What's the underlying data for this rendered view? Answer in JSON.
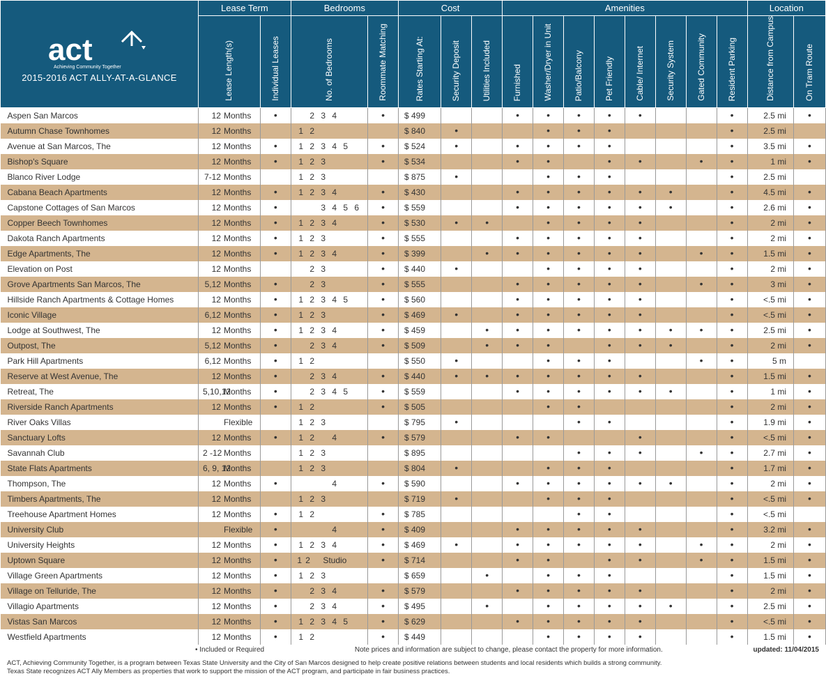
{
  "header": {
    "logo_label": "act",
    "logo_tagline": "Achieving Community Together",
    "title": "2015-2016 ACT ALLY-AT-A-GLANCE"
  },
  "groups": {
    "lease_term": "Lease Term",
    "bedrooms": "Bedrooms",
    "cost": "Cost",
    "amenities": "Amenities",
    "location": "Location"
  },
  "columns": {
    "lease_length": "Lease\nLength(s)",
    "individual_leases": "Individual\nLeases",
    "no_bedrooms": "No. of\nBedrooms",
    "roommate_matching": "Roommate\nMatching",
    "rates": "Rates\nStarting At:",
    "security_deposit": "Security\nDeposit",
    "utilities": "Utilities\nIncluded",
    "furnished": "Furnished",
    "washer_dryer": "Washer/Dryer\nin Unit",
    "patio_balcony": "Patio/Balcony",
    "pet_friendly": "Pet Friendly",
    "cable_internet": "Cable/ Internet",
    "security_system": "Security System",
    "gated": "Gated\nCommunity",
    "resident_parking": "Resident\nParking",
    "distance": "Distance from\nCampus",
    "tram": "On\nTram Route"
  },
  "footer": {
    "legend": "Included or Required",
    "note": "Note prices and information are subject to change, please contact the property for more information.",
    "updated": "updated: 11/04/2015",
    "disclaimer1": "ACT, Achieving Community Together, is a program between Texas State University and the City of San Marcos designed to help create positive relations between students and local residents which builds a strong community.",
    "disclaimer2": "Texas State recognizes ACT Ally Members as properties that work to support the mission of the ACT program, and participate in fair business practices."
  },
  "bedroom_slots": [
    "1",
    "2",
    "3",
    "4",
    "5",
    "6"
  ],
  "properties": [
    {
      "name": "Aspen San Marcos",
      "lease_num": "12",
      "lease_unit": "Months",
      "ind": "•",
      "beds": [
        "",
        "2",
        "3",
        "4",
        "",
        ""
      ],
      "room": "•",
      "rate": "$ 499",
      "sec": "",
      "util": "",
      "fur": "•",
      "wd": "•",
      "patio": "•",
      "pet": "•",
      "cable": "•",
      "ss": "",
      "gated": "",
      "park": "•",
      "dist": "2.5 mi",
      "tram": "•"
    },
    {
      "name": "Autumn Chase Townhomes",
      "lease_num": "12",
      "lease_unit": "Months",
      "ind": "",
      "beds": [
        "1",
        "2",
        "",
        "",
        "",
        ""
      ],
      "room": "",
      "rate": "$ 840",
      "sec": "•",
      "util": "",
      "fur": "",
      "wd": "•",
      "patio": "•",
      "pet": "•",
      "cable": "",
      "ss": "",
      "gated": "",
      "park": "•",
      "dist": "2.5 mi",
      "tram": ""
    },
    {
      "name": "Avenue at San Marcos, The",
      "lease_num": "12",
      "lease_unit": "Months",
      "ind": "•",
      "beds": [
        "1",
        "2",
        "3",
        "4",
        "5",
        ""
      ],
      "room": "•",
      "rate": "$ 524",
      "sec": "•",
      "util": "",
      "fur": "•",
      "wd": "•",
      "patio": "•",
      "pet": "•",
      "cable": "",
      "ss": "",
      "gated": "",
      "park": "•",
      "dist": "3.5 mi",
      "tram": "•"
    },
    {
      "name": "Bishop's Square",
      "lease_num": "12",
      "lease_unit": "Months",
      "ind": "•",
      "beds": [
        "1",
        "2",
        "3",
        "",
        "",
        ""
      ],
      "room": "•",
      "rate": "$ 534",
      "sec": "",
      "util": "",
      "fur": "•",
      "wd": "•",
      "patio": "",
      "pet": "•",
      "cable": "•",
      "ss": "",
      "gated": "•",
      "park": "•",
      "dist": "1 mi",
      "tram": "•"
    },
    {
      "name": "Blanco River Lodge",
      "lease_num": "7-12",
      "lease_unit": "Months",
      "ind": "",
      "beds": [
        "1",
        "2",
        "3",
        "",
        "",
        ""
      ],
      "room": "",
      "rate": "$ 875",
      "sec": "•",
      "util": "",
      "fur": "",
      "wd": "•",
      "patio": "•",
      "pet": "•",
      "cable": "",
      "ss": "",
      "gated": "",
      "park": "•",
      "dist": "2.5 mi",
      "tram": ""
    },
    {
      "name": "Cabana Beach Apartments",
      "lease_num": "12",
      "lease_unit": "Months",
      "ind": "•",
      "beds": [
        "1",
        "2",
        "3",
        "4",
        "",
        ""
      ],
      "room": "•",
      "rate": "$ 430",
      "sec": "",
      "util": "",
      "fur": "•",
      "wd": "•",
      "patio": "•",
      "pet": "•",
      "cable": "•",
      "ss": "•",
      "gated": "",
      "park": "•",
      "dist": "4.5 mi",
      "tram": "•"
    },
    {
      "name": "Capstone Cottages of San Marcos",
      "lease_num": "12",
      "lease_unit": "Months",
      "ind": "•",
      "beds": [
        "",
        "",
        "3",
        "4",
        "5",
        "6"
      ],
      "room": "•",
      "rate": "$ 559",
      "sec": "",
      "util": "",
      "fur": "•",
      "wd": "•",
      "patio": "•",
      "pet": "•",
      "cable": "•",
      "ss": "•",
      "gated": "",
      "park": "•",
      "dist": "2.6 mi",
      "tram": "•"
    },
    {
      "name": "Copper Beech Townhomes",
      "lease_num": "12",
      "lease_unit": "Months",
      "ind": "•",
      "beds": [
        "1",
        "2",
        "3",
        "4",
        "",
        ""
      ],
      "room": "•",
      "rate": "$ 530",
      "sec": "•",
      "util": "•",
      "fur": "",
      "wd": "•",
      "patio": "•",
      "pet": "•",
      "cable": "•",
      "ss": "",
      "gated": "",
      "park": "•",
      "dist": "2 mi",
      "tram": "•"
    },
    {
      "name": "Dakota Ranch Apartments",
      "lease_num": "12",
      "lease_unit": "Months",
      "ind": "•",
      "beds": [
        "1",
        "2",
        "3",
        "",
        "",
        ""
      ],
      "room": "•",
      "rate": "$ 555",
      "sec": "",
      "util": "",
      "fur": "•",
      "wd": "•",
      "patio": "•",
      "pet": "•",
      "cable": "•",
      "ss": "",
      "gated": "",
      "park": "•",
      "dist": "2 mi",
      "tram": "•"
    },
    {
      "name": "Edge Apartments, The",
      "lease_num": "12",
      "lease_unit": "Months",
      "ind": "•",
      "beds": [
        "1",
        "2",
        "3",
        "4",
        "",
        ""
      ],
      "room": "•",
      "rate": "$ 399",
      "sec": "",
      "util": "•",
      "fur": "•",
      "wd": "•",
      "patio": "•",
      "pet": "•",
      "cable": "•",
      "ss": "",
      "gated": "•",
      "park": "•",
      "dist": "1.5 mi",
      "tram": "•"
    },
    {
      "name": "Elevation on Post",
      "lease_num": "12",
      "lease_unit": "Months",
      "ind": "",
      "beds": [
        "",
        "2",
        "3",
        "",
        "",
        ""
      ],
      "room": "•",
      "rate": "$ 440",
      "sec": "•",
      "util": "",
      "fur": "",
      "wd": "•",
      "patio": "•",
      "pet": "•",
      "cable": "•",
      "ss": "",
      "gated": "",
      "park": "•",
      "dist": "2 mi",
      "tram": "•"
    },
    {
      "name": "Grove Apartments San Marcos, The",
      "lease_num": "5,12",
      "lease_unit": "Months",
      "ind": "•",
      "beds": [
        "",
        "2",
        "3",
        "",
        "",
        ""
      ],
      "room": "•",
      "rate": "$ 555",
      "sec": "",
      "util": "",
      "fur": "•",
      "wd": "•",
      "patio": "•",
      "pet": "•",
      "cable": "•",
      "ss": "",
      "gated": "•",
      "park": "•",
      "dist": "3 mi",
      "tram": "•"
    },
    {
      "name": "Hillside Ranch Apartments & Cottage Homes",
      "lease_num": "12",
      "lease_unit": "Months",
      "ind": "•",
      "beds": [
        "1",
        "2",
        "3",
        "4",
        "5",
        ""
      ],
      "room": "•",
      "rate": "$ 560",
      "sec": "",
      "util": "",
      "fur": "•",
      "wd": "•",
      "patio": "•",
      "pet": "•",
      "cable": "•",
      "ss": "",
      "gated": "",
      "park": "•",
      "dist": "<.5 mi",
      "tram": "•"
    },
    {
      "name": "Iconic Village",
      "lease_num": "6,12",
      "lease_unit": "Months",
      "ind": "•",
      "beds": [
        "1",
        "2",
        "3",
        "",
        "",
        ""
      ],
      "room": "•",
      "rate": "$ 469",
      "sec": "•",
      "util": "",
      "fur": "•",
      "wd": "•",
      "patio": "•",
      "pet": "•",
      "cable": "•",
      "ss": "",
      "gated": "",
      "park": "•",
      "dist": "<.5 mi",
      "tram": "•"
    },
    {
      "name": "Lodge at Southwest, The",
      "lease_num": "12",
      "lease_unit": "Months",
      "ind": "•",
      "beds": [
        "1",
        "2",
        "3",
        "4",
        "",
        ""
      ],
      "room": "•",
      "rate": "$ 459",
      "sec": "",
      "util": "•",
      "fur": "•",
      "wd": "•",
      "patio": "•",
      "pet": "•",
      "cable": "•",
      "ss": "•",
      "gated": "•",
      "park": "•",
      "dist": "2.5 mi",
      "tram": "•"
    },
    {
      "name": "Outpost, The",
      "lease_num": "5,12",
      "lease_unit": "Months",
      "ind": "•",
      "beds": [
        "",
        "2",
        "3",
        "4",
        "",
        ""
      ],
      "room": "•",
      "rate": "$ 509",
      "sec": "",
      "util": "•",
      "fur": "•",
      "wd": "•",
      "patio": "",
      "pet": "•",
      "cable": "•",
      "ss": "•",
      "gated": "",
      "park": "•",
      "dist": "2 mi",
      "tram": "•"
    },
    {
      "name": "Park Hill Apartments",
      "lease_num": "6,12",
      "lease_unit": "Months",
      "ind": "•",
      "beds": [
        "1",
        "2",
        "",
        "",
        "",
        ""
      ],
      "room": "",
      "rate": "$ 550",
      "sec": "•",
      "util": "",
      "fur": "",
      "wd": "•",
      "patio": "•",
      "pet": "•",
      "cable": "",
      "ss": "",
      "gated": "•",
      "park": "•",
      "dist": "5 m",
      "tram": ""
    },
    {
      "name": "Reserve at West Avenue, The",
      "lease_num": "12",
      "lease_unit": "Months",
      "ind": "•",
      "beds": [
        "",
        "2",
        "3",
        "4",
        "",
        ""
      ],
      "room": "•",
      "rate": "$ 440",
      "sec": "•",
      "util": "•",
      "fur": "•",
      "wd": "•",
      "patio": "•",
      "pet": "•",
      "cable": "•",
      "ss": "",
      "gated": "",
      "park": "•",
      "dist": "1.5 mi",
      "tram": "•"
    },
    {
      "name": "Retreat, The",
      "lease_num": "5,10,12",
      "lease_unit": "Months",
      "ind": "•",
      "beds": [
        "",
        "2",
        "3",
        "4",
        "5",
        ""
      ],
      "room": "•",
      "rate": "$ 559",
      "sec": "",
      "util": "",
      "fur": "•",
      "wd": "•",
      "patio": "•",
      "pet": "•",
      "cable": "•",
      "ss": "•",
      "gated": "",
      "park": "•",
      "dist": "1 mi",
      "tram": "•"
    },
    {
      "name": "Riverside Ranch Apartments",
      "lease_num": "12",
      "lease_unit": "Months",
      "ind": "•",
      "beds": [
        "1",
        "2",
        "",
        "",
        "",
        ""
      ],
      "room": "•",
      "rate": "$ 505",
      "sec": "",
      "util": "",
      "fur": "",
      "wd": "•",
      "patio": "•",
      "pet": "",
      "cable": "",
      "ss": "",
      "gated": "",
      "park": "•",
      "dist": "2 mi",
      "tram": "•"
    },
    {
      "name": "River Oaks Villas",
      "lease_num": "",
      "lease_unit": "Flexible",
      "ind": "",
      "beds": [
        "1",
        "2",
        "3",
        "",
        "",
        ""
      ],
      "room": "",
      "rate": "$ 795",
      "sec": "•",
      "util": "",
      "fur": "",
      "wd": "",
      "patio": "•",
      "pet": "•",
      "cable": "",
      "ss": "",
      "gated": "",
      "park": "•",
      "dist": "1.9 mi",
      "tram": "•"
    },
    {
      "name": "Sanctuary Lofts",
      "lease_num": "12",
      "lease_unit": "Months",
      "ind": "•",
      "beds": [
        "1",
        "2",
        "",
        "4",
        "",
        ""
      ],
      "room": "•",
      "rate": "$ 579",
      "sec": "",
      "util": "",
      "fur": "•",
      "wd": "•",
      "patio": "",
      "pet": "",
      "cable": "•",
      "ss": "",
      "gated": "",
      "park": "•",
      "dist": "<.5 mi",
      "tram": "•"
    },
    {
      "name": "Savannah Club",
      "lease_num": "2 -12",
      "lease_unit": "Months",
      "ind": "",
      "beds": [
        "1",
        "2",
        "3",
        "",
        "",
        ""
      ],
      "room": "",
      "rate": "$ 895",
      "sec": "",
      "util": "",
      "fur": "",
      "wd": "",
      "patio": "•",
      "pet": "•",
      "cable": "•",
      "ss": "",
      "gated": "•",
      "park": "•",
      "dist": "2.7 mi",
      "tram": "•"
    },
    {
      "name": "State Flats Apartments",
      "lease_num": "6, 9, 12",
      "lease_unit": "Months",
      "ind": "",
      "beds": [
        "1",
        "2",
        "3",
        "",
        "",
        ""
      ],
      "room": "",
      "rate": "$ 804",
      "sec": "•",
      "util": "",
      "fur": "",
      "wd": "•",
      "patio": "•",
      "pet": "•",
      "cable": "",
      "ss": "",
      "gated": "",
      "park": "•",
      "dist": "1.7 mi",
      "tram": "•"
    },
    {
      "name": "Thompson, The",
      "lease_num": "12",
      "lease_unit": "Months",
      "ind": "•",
      "beds": [
        "",
        "",
        "",
        "4",
        "",
        ""
      ],
      "room": "•",
      "rate": "$ 590",
      "sec": "",
      "util": "",
      "fur": "•",
      "wd": "•",
      "patio": "•",
      "pet": "•",
      "cable": "•",
      "ss": "•",
      "gated": "",
      "park": "•",
      "dist": "2 mi",
      "tram": "•"
    },
    {
      "name": "Timbers Apartments, The",
      "lease_num": "12",
      "lease_unit": "Months",
      "ind": "",
      "beds": [
        "1",
        "2",
        "3",
        "",
        "",
        ""
      ],
      "room": "",
      "rate": "$ 719",
      "sec": "•",
      "util": "",
      "fur": "",
      "wd": "•",
      "patio": "•",
      "pet": "•",
      "cable": "",
      "ss": "",
      "gated": "",
      "park": "•",
      "dist": "<.5 mi",
      "tram": "•"
    },
    {
      "name": "Treehouse Apartment Homes",
      "lease_num": "12",
      "lease_unit": "Months",
      "ind": "•",
      "beds": [
        "1",
        "2",
        "",
        "",
        "",
        ""
      ],
      "room": "•",
      "rate": "$ 785",
      "sec": "",
      "util": "",
      "fur": "",
      "wd": "",
      "patio": "•",
      "pet": "•",
      "cable": "",
      "ss": "",
      "gated": "",
      "park": "•",
      "dist": "<.5 mi",
      "tram": ""
    },
    {
      "name": "University Club",
      "lease_num": "",
      "lease_unit": "Flexible",
      "ind": "•",
      "beds": [
        "",
        "",
        "",
        "4",
        "",
        ""
      ],
      "room": "•",
      "rate": "$ 409",
      "sec": "",
      "util": "",
      "fur": "•",
      "wd": "•",
      "patio": "•",
      "pet": "•",
      "cable": "•",
      "ss": "",
      "gated": "",
      "park": "•",
      "dist": "3.2 mi",
      "tram": "•"
    },
    {
      "name": "University Heights",
      "lease_num": "12",
      "lease_unit": "Months",
      "ind": "•",
      "beds": [
        "1",
        "2",
        "3",
        "4",
        "",
        ""
      ],
      "room": "•",
      "rate": "$ 469",
      "sec": "•",
      "util": "",
      "fur": "•",
      "wd": "•",
      "patio": "•",
      "pet": "•",
      "cable": "•",
      "ss": "",
      "gated": "•",
      "park": "•",
      "dist": "2 mi",
      "tram": "•"
    },
    {
      "name": "Uptown Square",
      "lease_num": "12",
      "lease_unit": "Months",
      "ind": "•",
      "beds": [
        "1",
        "2",
        "",
        "Studio",
        "",
        ""
      ],
      "room": "•",
      "rate": "$ 714",
      "sec": "",
      "util": "",
      "fur": "•",
      "wd": "•",
      "patio": "",
      "pet": "•",
      "cable": "•",
      "ss": "",
      "gated": "•",
      "park": "•",
      "dist": "1.5 mi",
      "tram": "•"
    },
    {
      "name": "Village Green Apartments",
      "lease_num": "12",
      "lease_unit": "Months",
      "ind": "•",
      "beds": [
        "1",
        "2",
        "3",
        "",
        "",
        ""
      ],
      "room": "",
      "rate": "$ 659",
      "sec": "",
      "util": "•",
      "fur": "",
      "wd": "•",
      "patio": "•",
      "pet": "•",
      "cable": "",
      "ss": "",
      "gated": "",
      "park": "•",
      "dist": "1.5 mi",
      "tram": "•"
    },
    {
      "name": "Village on Telluride, The",
      "lease_num": "12",
      "lease_unit": "Months",
      "ind": "•",
      "beds": [
        "",
        "2",
        "3",
        "4",
        "",
        ""
      ],
      "room": "•",
      "rate": "$ 579",
      "sec": "",
      "util": "",
      "fur": "•",
      "wd": "•",
      "patio": "•",
      "pet": "•",
      "cable": "•",
      "ss": "",
      "gated": "",
      "park": "•",
      "dist": "2 mi",
      "tram": "•"
    },
    {
      "name": "Villagio Apartments",
      "lease_num": "12",
      "lease_unit": "Months",
      "ind": "•",
      "beds": [
        "",
        "2",
        "3",
        "4",
        "",
        ""
      ],
      "room": "•",
      "rate": "$ 495",
      "sec": "",
      "util": "•",
      "fur": "",
      "wd": "•",
      "patio": "•",
      "pet": "•",
      "cable": "•",
      "ss": "•",
      "gated": "",
      "park": "•",
      "dist": "2.5 mi",
      "tram": "•"
    },
    {
      "name": "Vistas San Marcos",
      "lease_num": "12",
      "lease_unit": "Months",
      "ind": "•",
      "beds": [
        "1",
        "2",
        "3",
        "4",
        "5",
        ""
      ],
      "room": "•",
      "rate": "$ 629",
      "sec": "",
      "util": "",
      "fur": "•",
      "wd": "•",
      "patio": "•",
      "pet": "•",
      "cable": "•",
      "ss": "",
      "gated": "",
      "park": "•",
      "dist": "<.5 mi",
      "tram": "•"
    },
    {
      "name": "Westfield Apartments",
      "lease_num": "12",
      "lease_unit": "Months",
      "ind": "•",
      "beds": [
        "1",
        "2",
        "",
        "",
        "",
        ""
      ],
      "room": "•",
      "rate": "$ 449",
      "sec": "",
      "util": "",
      "fur": "",
      "wd": "•",
      "patio": "•",
      "pet": "•",
      "cable": "•",
      "ss": "",
      "gated": "",
      "park": "•",
      "dist": "1.5 mi",
      "tram": "•"
    }
  ]
}
